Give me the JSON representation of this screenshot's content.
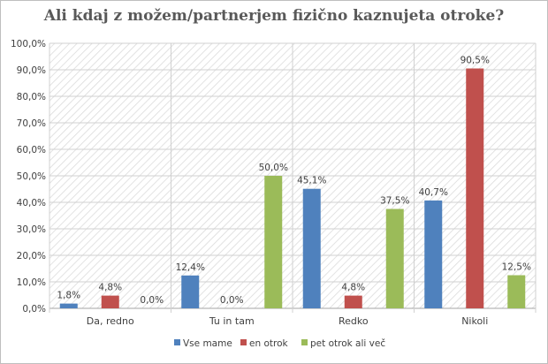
{
  "chart_data": {
    "type": "bar",
    "title": "Ali kdaj z možem/partnerjem fizično kaznujeta otroke?",
    "categories": [
      "Da, redno",
      "Tu in tam",
      "Redko",
      "Nikoli"
    ],
    "series": [
      {
        "name": "Vse mame",
        "color": "#4f81bd",
        "values": [
          1.8,
          12.4,
          45.1,
          40.7
        ],
        "labels": [
          "1,8%",
          "12,4%",
          "45,1%",
          "40,7%"
        ]
      },
      {
        "name": "en otrok",
        "color": "#c0504d",
        "values": [
          4.8,
          0.0,
          4.8,
          90.5
        ],
        "labels": [
          "4,8%",
          "0,0%",
          "4,8%",
          "90,5%"
        ]
      },
      {
        "name": "pet otrok ali več",
        "color": "#9bbb59",
        "values": [
          0.0,
          50.0,
          37.5,
          12.5
        ],
        "labels": [
          "0,0%",
          "50,0%",
          "37,5%",
          "12,5%"
        ]
      }
    ],
    "ylim": [
      0,
      100
    ],
    "yticks": [
      "0,0%",
      "10,0%",
      "20,0%",
      "30,0%",
      "40,0%",
      "50,0%",
      "60,0%",
      "70,0%",
      "80,0%",
      "90,0%",
      "100,0%"
    ],
    "grid": true,
    "legend": "bottom",
    "plot_background": "hatched light gray"
  }
}
